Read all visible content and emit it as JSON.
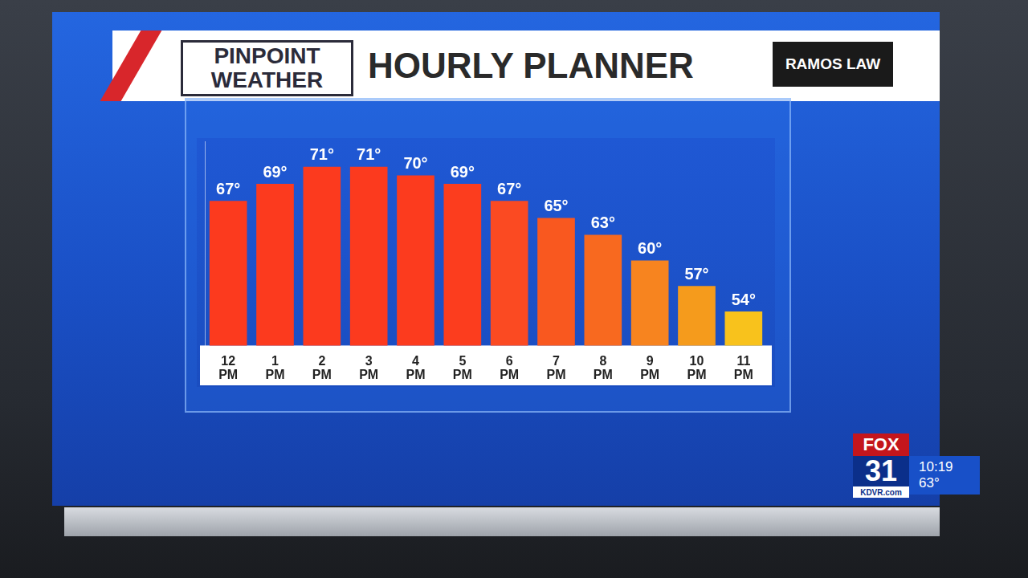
{
  "header": {
    "logo_lines": [
      "PINPOINT",
      "WEATHER"
    ],
    "sponsor": "RAMOS LAW"
  },
  "station_bug": {
    "network": "FOX",
    "channel": "31",
    "site": "KDVR.com",
    "time": "10:19",
    "temperature": "63°"
  },
  "chart_data": {
    "type": "bar",
    "title": "HOURLY PLANNER",
    "categories": [
      "12 PM",
      "1 PM",
      "2 PM",
      "3 PM",
      "4 PM",
      "5 PM",
      "6 PM",
      "7 PM",
      "8 PM",
      "9 PM",
      "10 PM",
      "11 PM"
    ],
    "values": [
      67,
      69,
      71,
      71,
      70,
      69,
      67,
      65,
      63,
      60,
      57,
      54
    ],
    "value_labels": [
      "67°",
      "69°",
      "71°",
      "71°",
      "70°",
      "69°",
      "67°",
      "65°",
      "63°",
      "60°",
      "57°",
      "54°"
    ],
    "colors": [
      "#fc3a1e",
      "#fc3a1e",
      "#fc3a1e",
      "#fc3a1e",
      "#fc3b1e",
      "#fc3d1e",
      "#fb4a22",
      "#f9581f",
      "#f8691f",
      "#f7841f",
      "#f59b1c",
      "#f8c21c"
    ],
    "ylim": [
      50,
      74
    ],
    "data_labels": true,
    "tick_labels": "x",
    "grid": false
  }
}
